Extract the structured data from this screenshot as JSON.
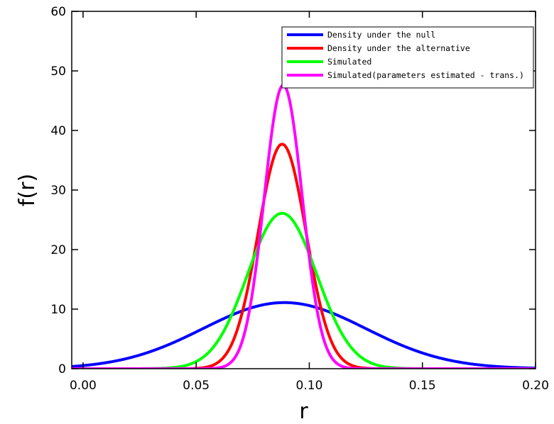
{
  "chart_data": {
    "type": "line",
    "title": "",
    "xlabel": "r",
    "ylabel": "f(r)",
    "xlim": [
      -0.005,
      0.2
    ],
    "ylim": [
      0,
      60
    ],
    "x_ticks": [
      0.0,
      0.05,
      0.1,
      0.15,
      0.2
    ],
    "x_tick_labels": [
      "0.00",
      "0.05",
      "0.10",
      "0.15",
      "0.20"
    ],
    "y_ticks": [
      0,
      10,
      20,
      30,
      40,
      50,
      60
    ],
    "y_tick_labels": [
      "0",
      "10",
      "20",
      "30",
      "40",
      "50",
      "60"
    ],
    "grid": false,
    "legend_position": "top-right",
    "series": [
      {
        "name": "Density under the null",
        "color": "#0000ff",
        "mean": 0.089,
        "sd": 0.036,
        "peak": 11.1
      },
      {
        "name": "Density under the alternative",
        "color": "#ff0000",
        "mean": 0.088,
        "sd": 0.0106,
        "peak": 37.7
      },
      {
        "name": "Simulated",
        "color": "#00ff00",
        "mean": 0.088,
        "sd": 0.0153,
        "peak": 26.1
      },
      {
        "name": "Simulated(parameters estimated - trans.)",
        "color": "#ff00ff",
        "mean": 0.0885,
        "sd": 0.0084,
        "peak": 47.6
      }
    ]
  }
}
